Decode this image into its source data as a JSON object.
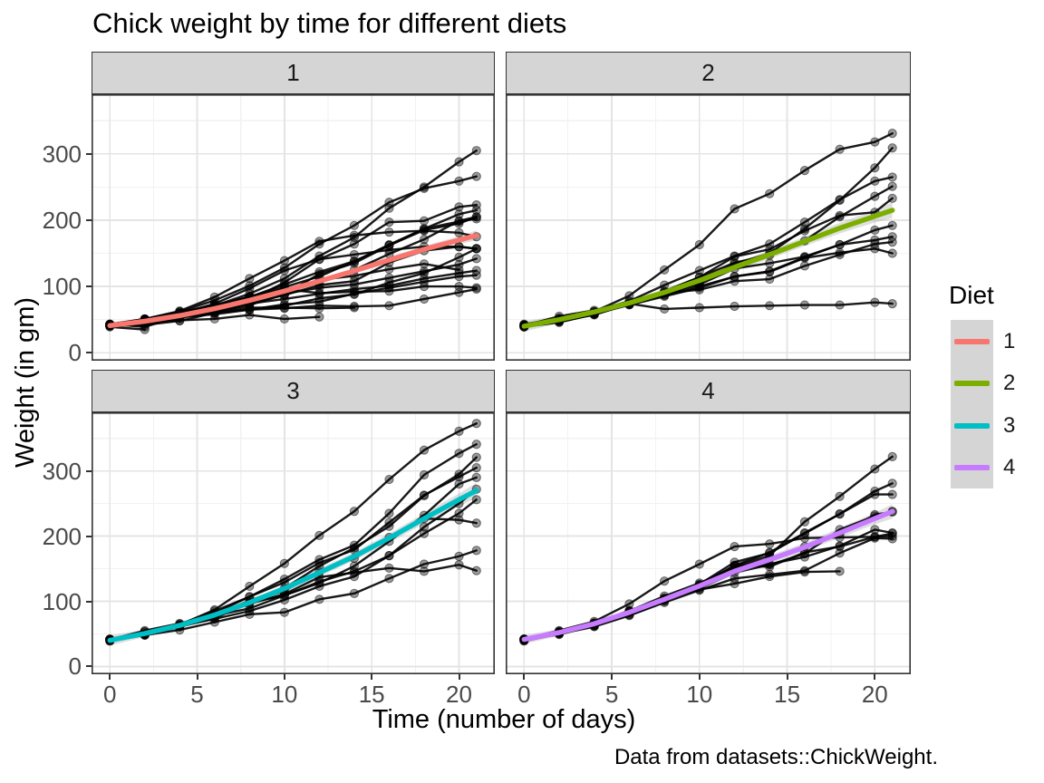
{
  "title": "Chick weight by time for different diets",
  "x_axis_title": "Time (number of days)",
  "y_axis_title": "Weight (in gm)",
  "caption": "Data from datasets::ChickWeight.",
  "legend": {
    "title": "Diet",
    "entries": [
      {
        "label": "1",
        "color": "#F8766D"
      },
      {
        "label": "2",
        "color": "#7CAE00"
      },
      {
        "label": "3",
        "color": "#00BFC4"
      },
      {
        "label": "4",
        "color": "#C77CFF"
      }
    ]
  },
  "style": {
    "strip_fill": "#d5d5d5",
    "panel_border": "#333333",
    "grid_major": "#e4e4e4",
    "grid_minor": "#f2f2f2",
    "data_line": "#000000",
    "ribbon": "#9e9e9e"
  },
  "chart_data": {
    "type": "line",
    "title": "Chick weight by time for different diets",
    "xlabel": "Time (number of days)",
    "ylabel": "Weight (in gm)",
    "facet_variable": "Diet",
    "facets": [
      "1",
      "2",
      "3",
      "4"
    ],
    "x_ticks": [
      0,
      5,
      10,
      15,
      20
    ],
    "y_ticks": [
      0,
      100,
      200,
      300
    ],
    "xlim": [
      -1.05,
      22.05
    ],
    "ylim": [
      -12,
      390
    ],
    "grid": true,
    "legend_position": "right",
    "time_points": [
      0,
      2,
      4,
      6,
      8,
      10,
      12,
      14,
      16,
      18,
      20,
      21
    ],
    "chicks": [
      {
        "chick": 1,
        "diet": 1,
        "weights": [
          42,
          51,
          59,
          64,
          76,
          93,
          106,
          125,
          149,
          171,
          199,
          205
        ]
      },
      {
        "chick": 2,
        "diet": 1,
        "weights": [
          40,
          49,
          58,
          72,
          84,
          103,
          122,
          138,
          162,
          187,
          209,
          215
        ]
      },
      {
        "chick": 3,
        "diet": 1,
        "weights": [
          43,
          39,
          55,
          67,
          84,
          99,
          115,
          138,
          163,
          187,
          198,
          202
        ]
      },
      {
        "chick": 4,
        "diet": 1,
        "weights": [
          42,
          49,
          56,
          67,
          74,
          87,
          102,
          108,
          136,
          154,
          160,
          157
        ]
      },
      {
        "chick": 5,
        "diet": 1,
        "weights": [
          41,
          42,
          48,
          60,
          79,
          106,
          141,
          164,
          197,
          199,
          220,
          223
        ]
      },
      {
        "chick": 6,
        "diet": 1,
        "weights": [
          41,
          49,
          59,
          74,
          97,
          124,
          141,
          148,
          155,
          160,
          160,
          157
        ]
      },
      {
        "chick": 7,
        "diet": 1,
        "weights": [
          41,
          49,
          57,
          71,
          89,
          112,
          146,
          174,
          218,
          250,
          288,
          305
        ]
      },
      {
        "chick": 8,
        "diet": 1,
        "weights": [
          42,
          50,
          61,
          71,
          84,
          93,
          110,
          116,
          126,
          134,
          125
        ]
      },
      {
        "chick": 9,
        "diet": 1,
        "weights": [
          42,
          51,
          59,
          68,
          85,
          96,
          90,
          92,
          93,
          100,
          100,
          98
        ]
      },
      {
        "chick": 10,
        "diet": 1,
        "weights": [
          41,
          44,
          52,
          63,
          74,
          81,
          89,
          96,
          101,
          112,
          120,
          124
        ]
      },
      {
        "chick": 11,
        "diet": 1,
        "weights": [
          43,
          51,
          63,
          84,
          112,
          139,
          168,
          177,
          182,
          184,
          181,
          175
        ]
      },
      {
        "chick": 12,
        "diet": 1,
        "weights": [
          41,
          49,
          56,
          62,
          72,
          88,
          119,
          135,
          162,
          185,
          195,
          205
        ]
      },
      {
        "chick": 13,
        "diet": 1,
        "weights": [
          41,
          48,
          53,
          60,
          65,
          67,
          71,
          70,
          71,
          81,
          91,
          96
        ]
      },
      {
        "chick": 14,
        "diet": 1,
        "weights": [
          41,
          49,
          62,
          79,
          101,
          128,
          164,
          192,
          227,
          248,
          259,
          266
        ]
      },
      {
        "chick": 15,
        "diet": 1,
        "weights": [
          41,
          49,
          56,
          64,
          68,
          68,
          67,
          68
        ]
      },
      {
        "chick": 16,
        "diet": 1,
        "weights": [
          41,
          45,
          49,
          51,
          57,
          51,
          54
        ]
      },
      {
        "chick": 17,
        "diet": 1,
        "weights": [
          42,
          51,
          61,
          72,
          83,
          89,
          98,
          103,
          113,
          123,
          133,
          142
        ]
      },
      {
        "chick": 18,
        "diet": 1,
        "weights": [
          39,
          35
        ]
      },
      {
        "chick": 19,
        "diet": 1,
        "weights": [
          43,
          48,
          55,
          62,
          65,
          71,
          82,
          88,
          106,
          120,
          144,
          157
        ]
      },
      {
        "chick": 20,
        "diet": 1,
        "weights": [
          41,
          47,
          54,
          58,
          65,
          73,
          77,
          89,
          98,
          107,
          115,
          117
        ]
      },
      {
        "chick": 21,
        "diet": 2,
        "weights": [
          40,
          50,
          62,
          86,
          125,
          163,
          217,
          240,
          275,
          307,
          318,
          331
        ]
      },
      {
        "chick": 22,
        "diet": 2,
        "weights": [
          41,
          55,
          64,
          77,
          90,
          95,
          108,
          111,
          131,
          148,
          164,
          167
        ]
      },
      {
        "chick": 23,
        "diet": 2,
        "weights": [
          43,
          52,
          61,
          73,
          90,
          103,
          127,
          135,
          145,
          163,
          170,
          175
        ]
      },
      {
        "chick": 24,
        "diet": 2,
        "weights": [
          42,
          52,
          58,
          74,
          66,
          68,
          70,
          71,
          72,
          72,
          76,
          74
        ]
      },
      {
        "chick": 25,
        "diet": 2,
        "weights": [
          40,
          49,
          62,
          78,
          102,
          124,
          146,
          164,
          197,
          231,
          259,
          265
        ]
      },
      {
        "chick": 26,
        "diet": 2,
        "weights": [
          42,
          48,
          57,
          74,
          93,
          114,
          136,
          147,
          169,
          205,
          236,
          251
        ]
      },
      {
        "chick": 27,
        "diet": 2,
        "weights": [
          39,
          46,
          58,
          73,
          87,
          100,
          115,
          123,
          144,
          163,
          185,
          192
        ]
      },
      {
        "chick": 28,
        "diet": 2,
        "weights": [
          39,
          46,
          58,
          73,
          92,
          114,
          145,
          156,
          184,
          207,
          212,
          233
        ]
      },
      {
        "chick": 29,
        "diet": 2,
        "weights": [
          39,
          48,
          59,
          74,
          87,
          106,
          134,
          150,
          187,
          230,
          279,
          309
        ]
      },
      {
        "chick": 30,
        "diet": 2,
        "weights": [
          42,
          48,
          59,
          72,
          85,
          98,
          115,
          122,
          143,
          151,
          157,
          150
        ]
      },
      {
        "chick": 31,
        "diet": 3,
        "weights": [
          42,
          53,
          62,
          73,
          85,
          102,
          123,
          138,
          170,
          204,
          235,
          256
        ]
      },
      {
        "chick": 32,
        "diet": 3,
        "weights": [
          41,
          49,
          65,
          82,
          107,
          129,
          159,
          179,
          221,
          263,
          291,
          305
        ]
      },
      {
        "chick": 33,
        "diet": 3,
        "weights": [
          39,
          50,
          63,
          77,
          96,
          111,
          137,
          144,
          151,
          146,
          156,
          147
        ]
      },
      {
        "chick": 34,
        "diet": 3,
        "weights": [
          41,
          49,
          63,
          85,
          107,
          134,
          164,
          186,
          235,
          294,
          327,
          341
        ]
      },
      {
        "chick": 35,
        "diet": 3,
        "weights": [
          41,
          53,
          64,
          87,
          123,
          158,
          201,
          238,
          287,
          332,
          361,
          373
        ]
      },
      {
        "chick": 36,
        "diet": 3,
        "weights": [
          39,
          48,
          61,
          76,
          98,
          116,
          145,
          166,
          198,
          227,
          225,
          220
        ]
      },
      {
        "chick": 37,
        "diet": 3,
        "weights": [
          41,
          48,
          56,
          68,
          80,
          83,
          103,
          112,
          135,
          157,
          169,
          178
        ]
      },
      {
        "chick": 38,
        "diet": 3,
        "weights": [
          41,
          49,
          61,
          74,
          98,
          109,
          128,
          154,
          192,
          232,
          280,
          290
        ]
      },
      {
        "chick": 39,
        "diet": 3,
        "weights": [
          42,
          50,
          61,
          78,
          89,
          109,
          130,
          146,
          170,
          214,
          250,
          272
        ]
      },
      {
        "chick": 40,
        "diet": 3,
        "weights": [
          41,
          55,
          66,
          79,
          101,
          120,
          154,
          182,
          215,
          262,
          295,
          321
        ]
      },
      {
        "chick": 41,
        "diet": 4,
        "weights": [
          42,
          51,
          66,
          85,
          103,
          124,
          155,
          153,
          175,
          184,
          199,
          204
        ]
      },
      {
        "chick": 42,
        "diet": 4,
        "weights": [
          42,
          49,
          63,
          84,
          103,
          126,
          160,
          174,
          204,
          234,
          269,
          281
        ]
      },
      {
        "chick": 43,
        "diet": 4,
        "weights": [
          42,
          55,
          69,
          96,
          131,
          157,
          184,
          188,
          197,
          198,
          199,
          200
        ]
      },
      {
        "chick": 44,
        "diet": 4,
        "weights": [
          42,
          51,
          65,
          86,
          103,
          118,
          127,
          138,
          145,
          146
        ]
      },
      {
        "chick": 45,
        "diet": 4,
        "weights": [
          41,
          50,
          61,
          78,
          98,
          117,
          135,
          141,
          147,
          174,
          197,
          196
        ]
      },
      {
        "chick": 46,
        "diet": 4,
        "weights": [
          40,
          52,
          62,
          82,
          101,
          120,
          144,
          156,
          173,
          210,
          231,
          238
        ]
      },
      {
        "chick": 47,
        "diet": 4,
        "weights": [
          41,
          53,
          66,
          79,
          100,
          123,
          148,
          157,
          168,
          185,
          210,
          205
        ]
      },
      {
        "chick": 48,
        "diet": 4,
        "weights": [
          39,
          50,
          62,
          80,
          104,
          125,
          154,
          170,
          222,
          261,
          303,
          322
        ]
      },
      {
        "chick": 49,
        "diet": 4,
        "weights": [
          40,
          53,
          64,
          85,
          108,
          128,
          152,
          166,
          184,
          203,
          233,
          237
        ]
      },
      {
        "chick": 50,
        "diet": 4,
        "weights": [
          41,
          54,
          67,
          84,
          105,
          122,
          155,
          175,
          205,
          234,
          264,
          264
        ]
      }
    ],
    "smooths": [
      {
        "diet": 1,
        "color": "#F8766D",
        "y": [
          41,
          47.5,
          56,
          66.5,
          79,
          93,
          108,
          123.5,
          140,
          156,
          170,
          177
        ],
        "hw": [
          5,
          3.5,
          3,
          3,
          3,
          3,
          3.5,
          4,
          4.5,
          5,
          6,
          7.5
        ]
      },
      {
        "diet": 2,
        "color": "#7CAE00",
        "y": [
          40,
          50,
          61.5,
          75,
          91,
          109,
          129,
          148,
          168,
          188,
          206,
          215
        ],
        "hw": [
          8,
          5.5,
          5,
          5,
          5,
          5.5,
          6,
          6.5,
          7,
          8,
          9.5,
          12
        ]
      },
      {
        "diet": 3,
        "color": "#00BFC4",
        "y": [
          40,
          50.5,
          63,
          79,
          98,
          119.5,
          144,
          169,
          197,
          227,
          256,
          270
        ],
        "hw": [
          8,
          5.5,
          5,
          5,
          5,
          5.5,
          6,
          6.5,
          7,
          8,
          9.5,
          12
        ]
      },
      {
        "diet": 4,
        "color": "#C77CFF",
        "y": [
          41.5,
          52,
          65.5,
          83,
          103,
          123.5,
          146,
          164,
          183,
          205,
          227,
          238
        ],
        "hw": [
          7,
          5,
          4.5,
          4.5,
          4.5,
          5,
          5.5,
          6,
          6.5,
          7.5,
          9,
          11
        ]
      }
    ]
  }
}
